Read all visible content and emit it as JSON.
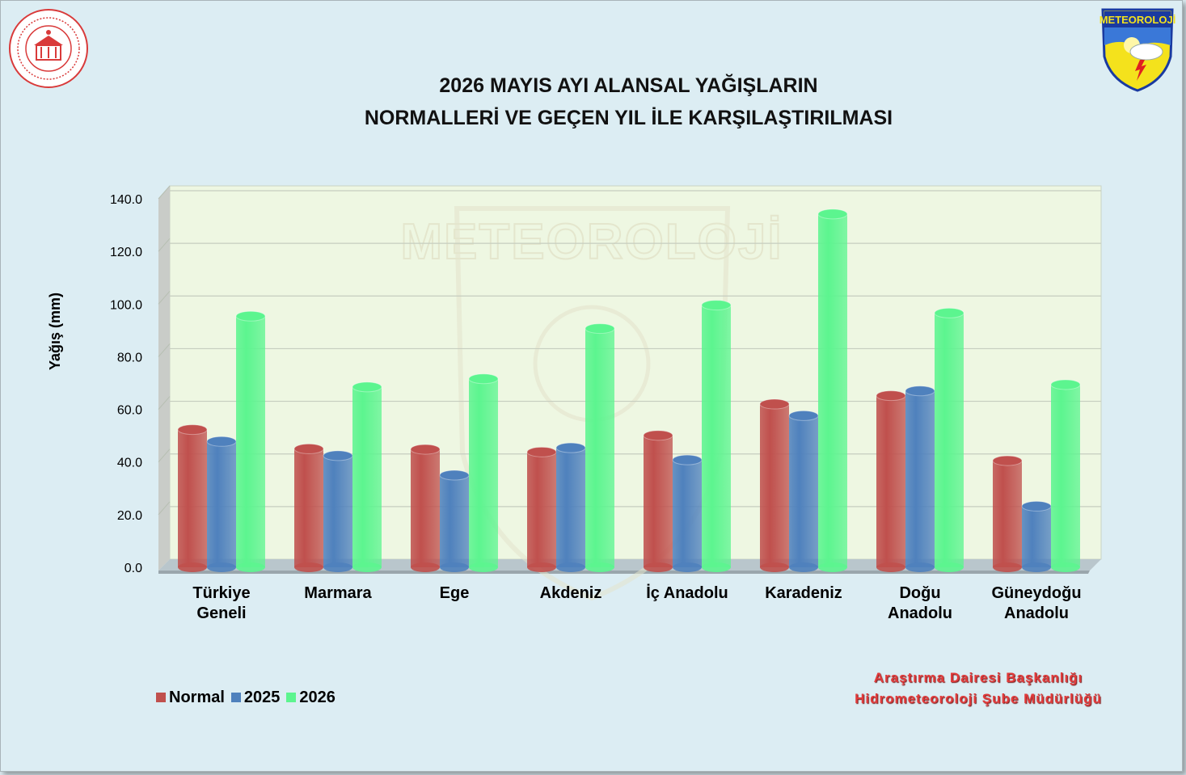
{
  "title_line1": "2026 MAYIS AYI ALANSAL YAĞIŞLARIN",
  "title_line2": "NORMALLERİ VE GEÇEN YIL İLE KARŞILAŞTIRILMASI",
  "logo_right_text": "METEOROLOJİ",
  "watermark_text": "METEOROLOJİ",
  "credit_line1": "Araştırma Dairesi Başkanlığı",
  "credit_line2": "Hidrometeoroloji Şube Müdürlüğü",
  "colors": {
    "Normal": "#c0504d",
    "2025": "#4f81bd",
    "2026": "#5cf58f",
    "plot_bg": "#eef7e2",
    "page_bg": "#dcedf3"
  },
  "chart_data": {
    "type": "bar",
    "ylabel": "Yağış (mm)",
    "xlabel": "",
    "ylim": [
      0,
      140
    ],
    "yticks": [
      "0.0",
      "20.0",
      "40.0",
      "60.0",
      "80.0",
      "100.0",
      "120.0",
      "140.0"
    ],
    "grid": true,
    "legend_position": "bottom-left",
    "categories": [
      [
        "Türkiye",
        "Geneli"
      ],
      [
        "Marmara"
      ],
      [
        "Ege"
      ],
      [
        "Akdeniz"
      ],
      [
        "İç Anadolu"
      ],
      [
        "Karadeniz"
      ],
      [
        "Doğu",
        "Anadolu"
      ],
      [
        "Güneydoğu",
        "Anadolu"
      ]
    ],
    "series": [
      {
        "name": "Normal",
        "values": [
          52.3,
          45.0,
          44.8,
          43.8,
          50.1,
          62.0,
          65.2,
          40.5
        ]
      },
      {
        "name": "2025",
        "values": [
          47.8,
          42.4,
          35.0,
          45.4,
          40.8,
          57.6,
          67.0,
          23.2
        ]
      },
      {
        "name": "2026",
        "values": [
          95.4,
          68.5,
          71.6,
          90.7,
          99.6,
          134.2,
          96.6,
          69.4
        ]
      }
    ]
  }
}
